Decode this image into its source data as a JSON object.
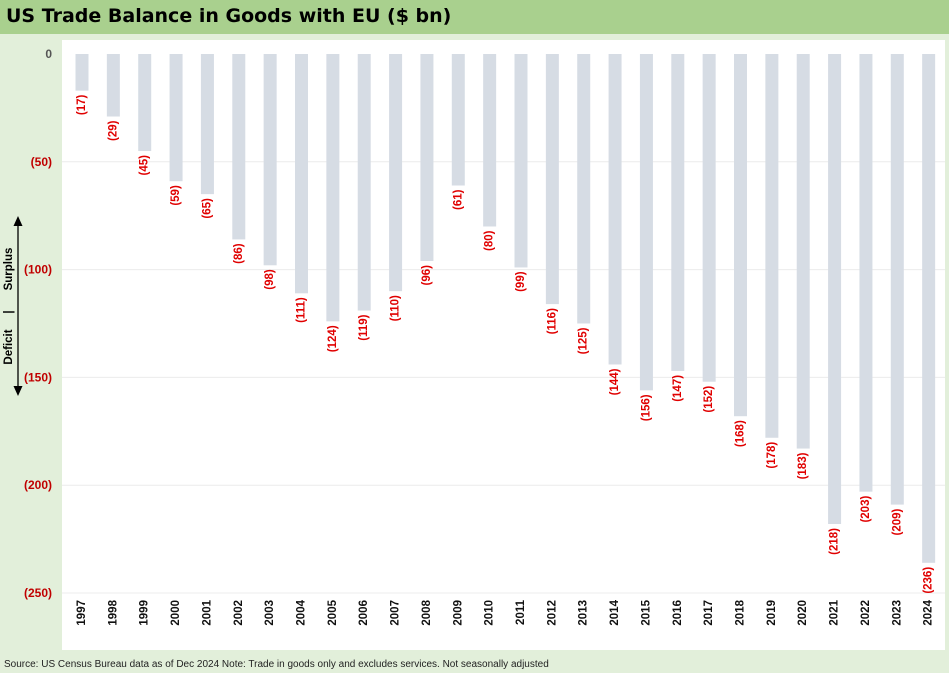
{
  "title": "US Trade Balance in Goods with EU ($ bn)",
  "source_note": "Source: US Census Bureau data as of Dec 2024 Note: Trade in goods only and excludes services. Not seasonally adjusted",
  "side_annotation": {
    "upper": "Surplus",
    "divider": "|",
    "lower": "Deficit"
  },
  "colors": {
    "title_bar": "#a9d08e",
    "background": "#e2efda",
    "bar": "#d6dce4",
    "data_label": "#e00000",
    "axis_negative_label": "#c00000"
  },
  "chart_data": {
    "type": "bar",
    "title": "US Trade Balance in Goods with EU ($ bn)",
    "categories": [
      "1997",
      "1998",
      "1999",
      "2000",
      "2001",
      "2002",
      "2003",
      "2004",
      "2005",
      "2006",
      "2007",
      "2008",
      "2009",
      "2010",
      "2011",
      "2012",
      "2013",
      "2014",
      "2015",
      "2016",
      "2017",
      "2018",
      "2019",
      "2020",
      "2021",
      "2022",
      "2023",
      "2024"
    ],
    "values": [
      -17,
      -29,
      -45,
      -59,
      -65,
      -86,
      -98,
      -111,
      -124,
      -119,
      -110,
      -96,
      -61,
      -80,
      -99,
      -116,
      -125,
      -144,
      -156,
      -147,
      -152,
      -168,
      -178,
      -183,
      -218,
      -203,
      -209,
      -236
    ],
    "data_labels": [
      "(17)",
      "(29)",
      "(45)",
      "(59)",
      "(65)",
      "(86)",
      "(98)",
      "(111)",
      "(124)",
      "(119)",
      "(110)",
      "(96)",
      "(61)",
      "(80)",
      "(99)",
      "(116)",
      "(125)",
      "(144)",
      "(156)",
      "(147)",
      "(152)",
      "(168)",
      "(178)",
      "(183)",
      "(218)",
      "(203)",
      "(209)",
      "(236)"
    ],
    "y_ticks": [
      0,
      -50,
      -100,
      -150,
      -200,
      -250
    ],
    "y_tick_labels": [
      "0",
      "(50)",
      "(100)",
      "(150)",
      "(200)",
      "(250)"
    ],
    "ylim": [
      -250,
      0
    ],
    "xlabel": "",
    "ylabel": "",
    "grid": true,
    "legend": "none"
  }
}
